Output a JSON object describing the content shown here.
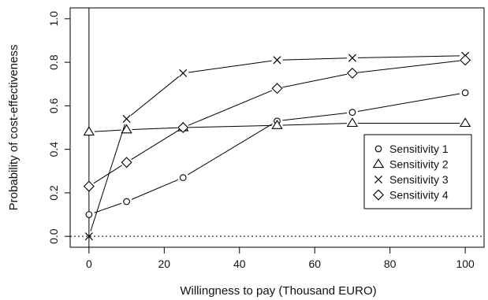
{
  "chart_data": {
    "type": "line",
    "title": "",
    "xlabel": "Willingness to pay (Thousand EURO)",
    "ylabel": "Probability of cost-effectiveness",
    "xlim": [
      -5,
      105
    ],
    "ylim": [
      -0.05,
      1.05
    ],
    "x_ticks": [
      0,
      20,
      40,
      60,
      80,
      100
    ],
    "y_ticks": [
      0.0,
      0.2,
      0.4,
      0.6,
      0.8,
      1.0
    ],
    "x_tick_labels": [
      "0",
      "20",
      "40",
      "60",
      "80",
      "100"
    ],
    "y_tick_labels": [
      "0.0",
      "0.2",
      "0.4",
      "0.6",
      "0.8",
      "1.0"
    ],
    "reference_lines": {
      "vertical_x": 0,
      "horizontal_dotted_y": 0
    },
    "grid": false,
    "legend_position": "right",
    "series": [
      {
        "name": "Sensitivity 1",
        "marker": "circle",
        "x": [
          0,
          10,
          25,
          50,
          70,
          100
        ],
        "y": [
          0.1,
          0.16,
          0.27,
          0.53,
          0.57,
          0.66
        ]
      },
      {
        "name": "Sensitivity 2",
        "marker": "triangle",
        "x": [
          0,
          10,
          25,
          50,
          70,
          100
        ],
        "y": [
          0.48,
          0.49,
          0.5,
          0.51,
          0.52,
          0.52
        ]
      },
      {
        "name": "Sensitivity 3",
        "marker": "cross",
        "x": [
          0,
          10,
          25,
          50,
          70,
          100
        ],
        "y": [
          0.0,
          0.54,
          0.75,
          0.81,
          0.82,
          0.83
        ]
      },
      {
        "name": "Sensitivity 4",
        "marker": "diamond",
        "x": [
          0,
          10,
          25,
          50,
          70,
          100
        ],
        "y": [
          0.23,
          0.34,
          0.5,
          0.68,
          0.75,
          0.81
        ]
      }
    ]
  }
}
